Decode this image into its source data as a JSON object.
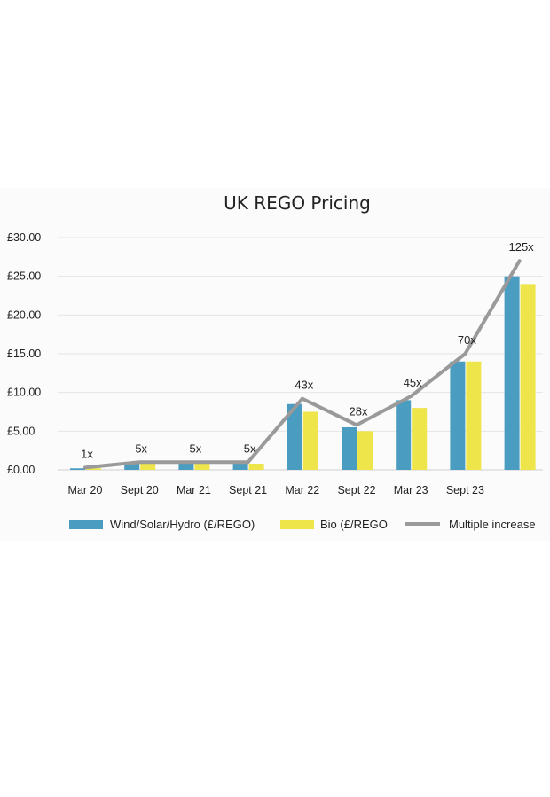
{
  "chart_data": {
    "type": "bar",
    "title": "UK REGO Pricing",
    "xlabel": "",
    "ylabel": "",
    "categories": [
      "Mar 20",
      "Sept 20",
      "Mar 21",
      "Sept 21",
      "Mar 22",
      "Sept 22",
      "Mar 23",
      "Sept 23",
      ""
    ],
    "y_ticks": [
      "£0.00",
      "£5.00",
      "£10.00",
      "£15.00",
      "£20.00",
      "£25.00",
      "£30.00"
    ],
    "ylim": [
      0,
      30
    ],
    "grid": true,
    "legend_position": "bottom",
    "series": [
      {
        "name": "Wind/Solar/Hydro (£/REGO)",
        "kind": "bar",
        "color": "#4a9cc0",
        "values": [
          0.2,
          1.0,
          1.0,
          1.0,
          8.5,
          5.5,
          9.0,
          14.0,
          25.0
        ]
      },
      {
        "name": "Bio (£/REGO",
        "kind": "bar",
        "color": "#ede54a",
        "values": [
          0.2,
          1.0,
          1.0,
          0.8,
          7.5,
          5.0,
          8.0,
          14.0,
          24.0
        ]
      },
      {
        "name": "Multiple increase",
        "kind": "line",
        "color": "#9a9a9a",
        "values": [
          0.3,
          1.0,
          1.0,
          1.0,
          9.2,
          5.8,
          9.5,
          15.0,
          27.0
        ],
        "labels": [
          "1x",
          "5x",
          "5x",
          "5x",
          "43x",
          "28x",
          "45x",
          "70x",
          "125x"
        ]
      }
    ]
  }
}
